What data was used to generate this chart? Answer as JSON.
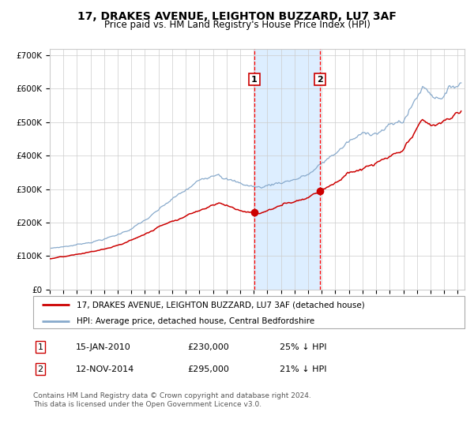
{
  "title": "17, DRAKES AVENUE, LEIGHTON BUZZARD, LU7 3AF",
  "subtitle": "Price paid vs. HM Land Registry's House Price Index (HPI)",
  "legend_label_red": "17, DRAKES AVENUE, LEIGHTON BUZZARD, LU7 3AF (detached house)",
  "legend_label_blue": "HPI: Average price, detached house, Central Bedfordshire",
  "event1_label": "1",
  "event1_price": 230000,
  "event1_year": 2010.042,
  "event1_text": "15-JAN-2010",
  "event1_pct": "25% ↓ HPI",
  "event2_label": "2",
  "event2_price": 295000,
  "event2_year": 2014.875,
  "event2_text": "12-NOV-2014",
  "event2_pct": "21% ↓ HPI",
  "footnote1": "Contains HM Land Registry data © Crown copyright and database right 2024.",
  "footnote2": "This data is licensed under the Open Government Licence v3.0.",
  "start_year": 1995,
  "end_year": 2025,
  "ylim_min": 0,
  "ylim_max": 720000,
  "yticks": [
    0,
    100000,
    200000,
    300000,
    400000,
    500000,
    600000,
    700000
  ],
  "background_color": "#ffffff",
  "plot_bg_color": "#ffffff",
  "grid_color": "#cccccc",
  "red_color": "#cc0000",
  "blue_color": "#88aacc",
  "shade_color": "#ddeeff",
  "vline_color": "#ff0000",
  "box_edge_color": "#cc0000",
  "title_fontsize": 10,
  "subtitle_fontsize": 8.5,
  "tick_fontsize": 7.5,
  "legend_fontsize": 7.5
}
